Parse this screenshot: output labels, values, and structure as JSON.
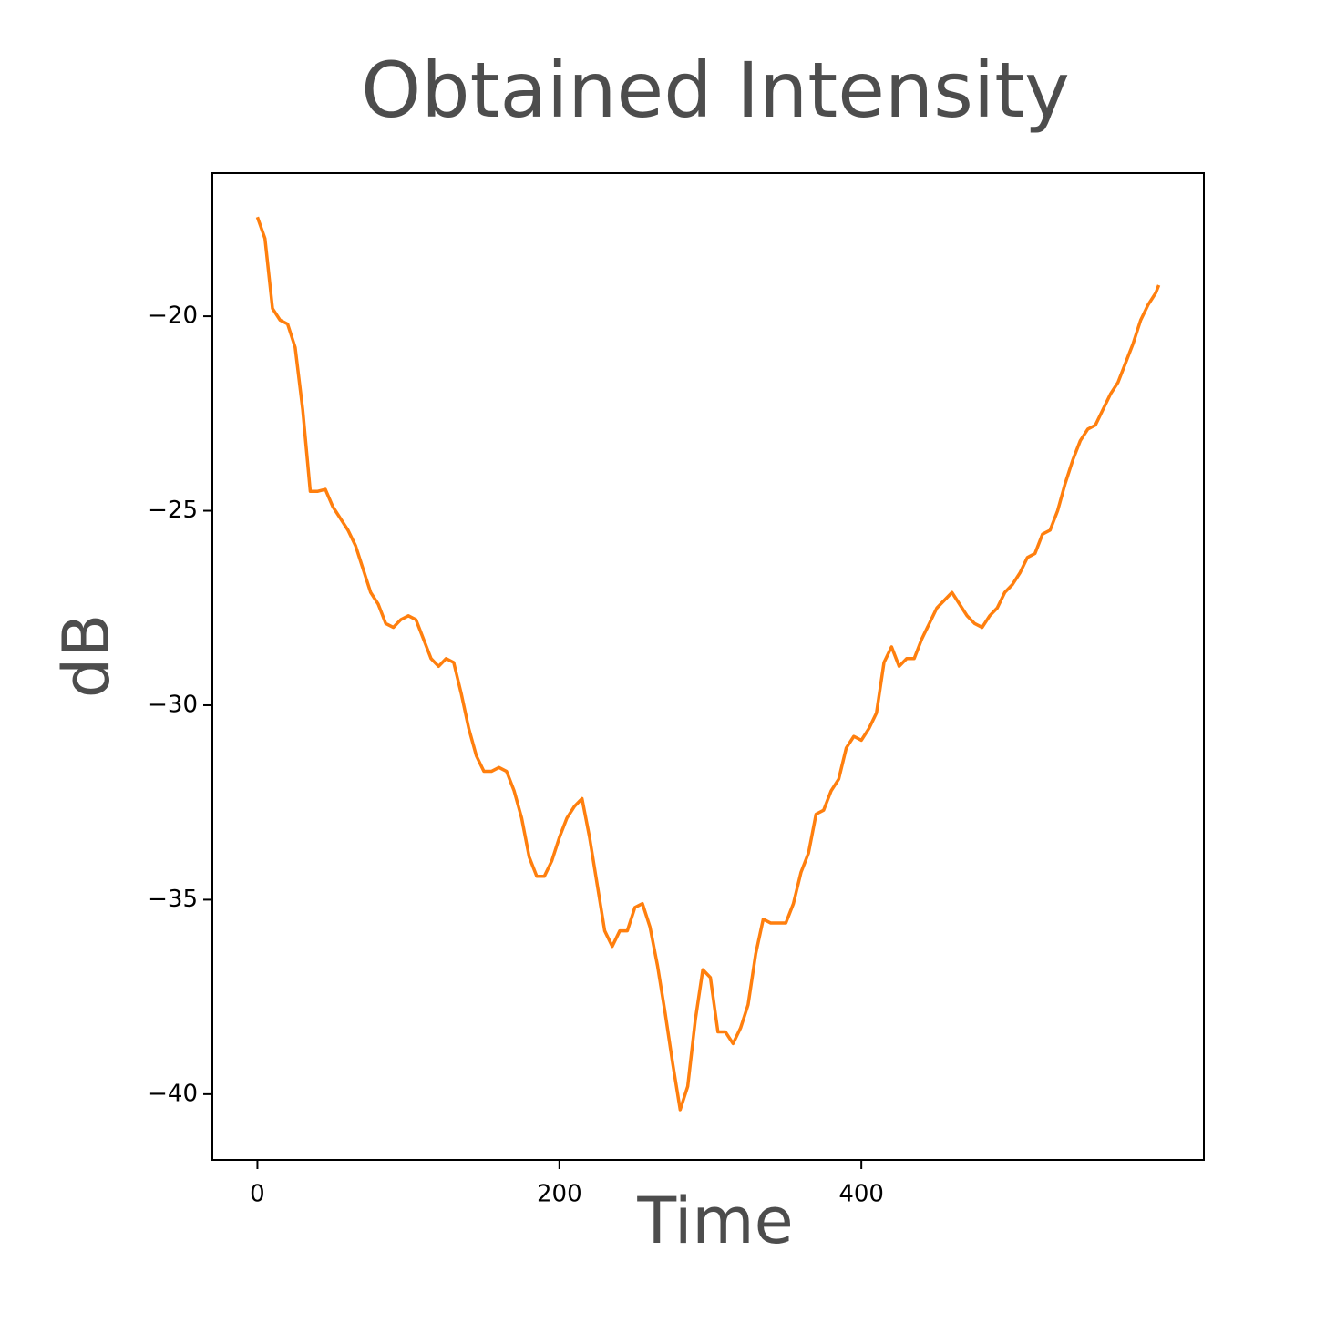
{
  "chart_data": {
    "type": "line",
    "title": "Obtained Intensity",
    "x_label": "Time",
    "y_label": "dB",
    "x": [
      0,
      5,
      10,
      15,
      20,
      25,
      30,
      35,
      40,
      45,
      50,
      55,
      60,
      65,
      70,
      75,
      80,
      85,
      90,
      95,
      100,
      105,
      110,
      115,
      120,
      125,
      130,
      135,
      140,
      145,
      150,
      155,
      160,
      165,
      170,
      175,
      180,
      185,
      190,
      195,
      200,
      205,
      210,
      215,
      220,
      225,
      230,
      235,
      240,
      245,
      250,
      255,
      260,
      265,
      270,
      275,
      280,
      285,
      290,
      295,
      300,
      305,
      310,
      315,
      320,
      325,
      330,
      335,
      340,
      345,
      350,
      355,
      360,
      365,
      370,
      375,
      380,
      385,
      390,
      395,
      400,
      405,
      410,
      415,
      420,
      425,
      430,
      435,
      440,
      445,
      450,
      455,
      460,
      465,
      470,
      475,
      480,
      485,
      490,
      495,
      500,
      505,
      510,
      515,
      520,
      525,
      530,
      535,
      540,
      545,
      550,
      555,
      560,
      565,
      570,
      575,
      580,
      585,
      590,
      595,
      597
    ],
    "series": [
      {
        "name": "dB",
        "color": "#ff7f0e",
        "values": [
          -17.45,
          -18.0,
          -19.8,
          -20.1,
          -20.2,
          -20.8,
          -22.4,
          -24.5,
          -24.5,
          -24.45,
          -24.9,
          -25.2,
          -25.5,
          -25.9,
          -26.5,
          -27.1,
          -27.4,
          -27.9,
          -28.0,
          -27.8,
          -27.7,
          -27.8,
          -28.3,
          -28.8,
          -29.0,
          -28.8,
          -28.9,
          -29.7,
          -30.6,
          -31.3,
          -31.7,
          -31.7,
          -31.6,
          -31.7,
          -32.2,
          -32.9,
          -33.9,
          -34.4,
          -34.4,
          -34.0,
          -33.4,
          -32.9,
          -32.6,
          -32.4,
          -33.4,
          -34.6,
          -35.8,
          -36.2,
          -35.8,
          -35.8,
          -35.2,
          -35.1,
          -35.7,
          -36.7,
          -37.9,
          -39.2,
          -40.4,
          -39.8,
          -38.1,
          -36.8,
          -37.0,
          -38.4,
          -38.4,
          -38.7,
          -38.3,
          -37.7,
          -36.4,
          -35.5,
          -35.6,
          -35.6,
          -35.6,
          -35.1,
          -34.3,
          -33.8,
          -32.8,
          -32.7,
          -32.2,
          -31.9,
          -31.1,
          -30.8,
          -30.9,
          -30.6,
          -30.2,
          -28.9,
          -28.5,
          -29.0,
          -28.8,
          -28.8,
          -28.3,
          -27.9,
          -27.5,
          -27.3,
          -27.1,
          -27.4,
          -27.7,
          -27.9,
          -28.0,
          -27.7,
          -27.5,
          -27.1,
          -26.9,
          -26.6,
          -26.2,
          -26.1,
          -25.6,
          -25.5,
          -25.0,
          -24.3,
          -23.7,
          -23.2,
          -22.9,
          -22.8,
          -22.4,
          -22.0,
          -21.7,
          -21.2,
          -20.7,
          -20.1,
          -19.7,
          -19.4,
          -19.2
        ]
      }
    ],
    "xlim": [
      -29.85,
      626.85
    ],
    "ylim": [
      -41.69,
      -16.32
    ],
    "xticks": [
      0,
      200,
      400
    ],
    "yticks": [
      {
        "value": -40,
        "label": "−40"
      },
      {
        "value": -35,
        "label": "−35"
      },
      {
        "value": -30,
        "label": "−30"
      },
      {
        "value": -25,
        "label": "−25"
      },
      {
        "value": -20,
        "label": "−20"
      }
    ],
    "grid": false
  }
}
